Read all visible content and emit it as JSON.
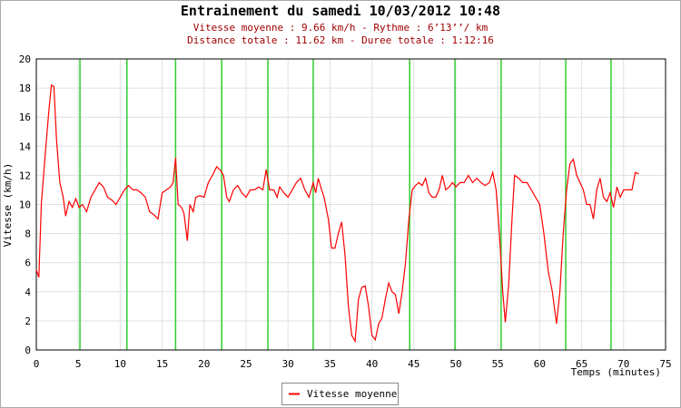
{
  "chart_data": {
    "type": "line",
    "title": "Entrainement du samedi 10/03/2012 10:48",
    "subtitle": [
      "Vitesse moyenne : 9.66 km/h - Rythme : 6’13’’/ km",
      "Distance totale : 11.62 km - Duree totale : 1:12:16"
    ],
    "x_label": "Temps (minutes)",
    "y_label": "Vitesse (km/h)",
    "xlim": [
      0,
      75
    ],
    "ylim": [
      0,
      20
    ],
    "xticks": [
      0,
      5,
      10,
      15,
      20,
      25,
      30,
      35,
      40,
      45,
      50,
      55,
      60,
      65,
      70,
      75
    ],
    "yticks": [
      0,
      2,
      4,
      6,
      8,
      10,
      12,
      14,
      16,
      18,
      20
    ],
    "grid": true,
    "legend": "bottom",
    "markers": {
      "color": "#33cc33",
      "x": [
        5.2,
        10.8,
        16.6,
        22.1,
        27.6,
        33.0,
        44.5,
        49.9,
        55.4,
        63.1,
        68.5
      ]
    },
    "series": [
      {
        "name": "Vitesse moyenne",
        "color": "#ff0000",
        "x": [
          0,
          0.3,
          0.6,
          1,
          1.5,
          1.8,
          2.1,
          2.4,
          2.8,
          3.2,
          3.5,
          3.9,
          4.3,
          4.7,
          5.1,
          5.5,
          6,
          6.5,
          7,
          7.5,
          8,
          8.5,
          9,
          9.5,
          10,
          10.5,
          11,
          11.5,
          12,
          12.5,
          13,
          13.5,
          14,
          14.5,
          15,
          15.5,
          16,
          16.3,
          16.6,
          16.9,
          17.3,
          17.6,
          18,
          18.3,
          18.7,
          19,
          19.5,
          20,
          20.5,
          21,
          21.5,
          22,
          22.3,
          22.7,
          23,
          23.5,
          24,
          24.5,
          25,
          25.5,
          26,
          26.5,
          27,
          27.4,
          27.8,
          28.3,
          28.7,
          29,
          29.5,
          30,
          30.5,
          31,
          31.5,
          32,
          32.5,
          33,
          33.3,
          33.6,
          34,
          34.3,
          34.8,
          35.2,
          35.6,
          36,
          36.4,
          36.8,
          37.2,
          37.6,
          38,
          38.4,
          38.8,
          39.2,
          39.6,
          40,
          40.4,
          40.8,
          41.2,
          41.6,
          42,
          42.4,
          42.8,
          43.2,
          43.6,
          44,
          44.4,
          44.8,
          45.2,
          45.6,
          46,
          46.4,
          46.8,
          47.2,
          47.6,
          48,
          48.4,
          48.8,
          49.2,
          49.6,
          50,
          50.5,
          51,
          51.5,
          52,
          52.5,
          53,
          53.5,
          54,
          54.4,
          54.8,
          55.2,
          55.6,
          55.9,
          56.3,
          56.7,
          57,
          57.5,
          58,
          58.5,
          59,
          59.5,
          60,
          60.5,
          61,
          61.5,
          62,
          62.4,
          62.8,
          63.2,
          63.6,
          64,
          64.4,
          64.8,
          65.2,
          65.6,
          66,
          66.4,
          66.8,
          67.2,
          67.6,
          68,
          68.4,
          68.8,
          69.2,
          69.6,
          70,
          70.5,
          71,
          71.4,
          71.8
        ],
        "values": [
          5.5,
          5.0,
          10,
          13,
          16.5,
          18.2,
          18.1,
          14.5,
          11.5,
          10.5,
          9.2,
          10.2,
          9.8,
          10.4,
          9.8,
          10.0,
          9.5,
          10.5,
          11.0,
          11.5,
          11.2,
          10.5,
          10.3,
          10.0,
          10.5,
          11.0,
          11.3,
          11.0,
          11.0,
          10.8,
          10.5,
          9.5,
          9.3,
          9.0,
          10.8,
          11.0,
          11.2,
          11.5,
          13.2,
          10.0,
          9.8,
          9.4,
          7.5,
          10.0,
          9.5,
          10.5,
          10.6,
          10.5,
          11.5,
          12.0,
          12.6,
          12.3,
          12.0,
          10.5,
          10.2,
          11.0,
          11.3,
          10.8,
          10.5,
          11.0,
          11.0,
          11.2,
          11.0,
          12.4,
          11.0,
          11.0,
          10.5,
          11.2,
          10.8,
          10.5,
          11.0,
          11.5,
          11.8,
          11.0,
          10.5,
          11.5,
          10.8,
          11.8,
          11.0,
          10.5,
          9.0,
          7.0,
          7.0,
          8.0,
          8.8,
          6.5,
          3.0,
          1.0,
          0.6,
          3.5,
          4.3,
          4.4,
          3.0,
          1.0,
          0.7,
          1.8,
          2.2,
          3.5,
          4.6,
          4.0,
          3.8,
          2.5,
          4.0,
          6.0,
          9.0,
          11.0,
          11.3,
          11.5,
          11.3,
          11.8,
          10.8,
          10.5,
          10.5,
          11.0,
          12.0,
          11.0,
          11.2,
          11.5,
          11.2,
          11.5,
          11.5,
          12.0,
          11.5,
          11.8,
          11.5,
          11.3,
          11.5,
          12.2,
          11.0,
          8.0,
          4.0,
          1.9,
          4.5,
          9.0,
          12.0,
          11.8,
          11.5,
          11.5,
          11.0,
          10.5,
          10.0,
          8.0,
          5.5,
          4.0,
          1.8,
          4.0,
          8.0,
          11.0,
          12.8,
          13.1,
          12.0,
          11.5,
          11.0,
          10.0,
          10.0,
          9.0,
          11.0,
          11.8,
          10.5,
          10.2,
          10.8,
          9.8,
          11.2,
          10.5,
          11.0,
          11.0,
          11.0,
          12.2,
          12.1
        ]
      }
    ]
  }
}
